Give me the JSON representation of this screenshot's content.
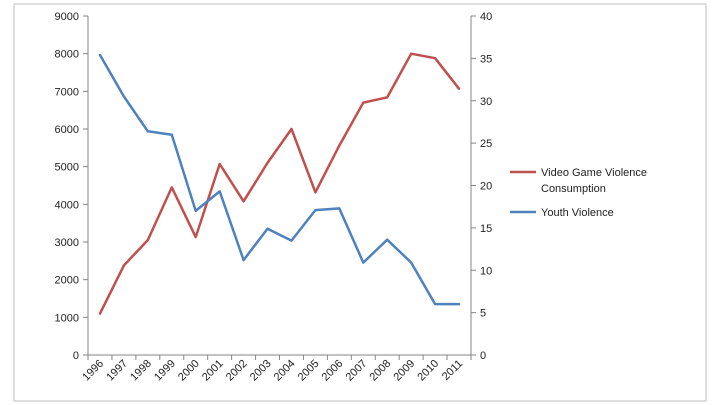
{
  "chart_data": {
    "type": "line",
    "x": [
      "1996",
      "1997",
      "1998",
      "1999",
      "2000",
      "2001",
      "2002",
      "2003",
      "2004",
      "2005",
      "2006",
      "2007",
      "2008",
      "2009",
      "2010",
      "2011"
    ],
    "ylim": [
      0,
      9000
    ],
    "yticks": [
      0,
      1000,
      2000,
      3000,
      4000,
      5000,
      6000,
      7000,
      8000,
      9000
    ],
    "y2lim": [
      0,
      40
    ],
    "y2ticks": [
      0,
      5,
      10,
      15,
      20,
      25,
      30,
      35,
      40
    ],
    "series": [
      {
        "name": "Video Game Violence Consumption",
        "axis": "left",
        "color": "#c0504d",
        "values": [
          1100,
          2380,
          3050,
          4450,
          3130,
          5070,
          4080,
          5100,
          6000,
          4320,
          5560,
          6700,
          6840,
          8000,
          7880,
          7070
        ]
      },
      {
        "name": "Youth Violence",
        "axis": "right",
        "color": "#4f81bd",
        "values": [
          35.4,
          30.5,
          26.4,
          26.0,
          17.0,
          19.3,
          11.2,
          14.9,
          13.5,
          17.1,
          17.3,
          10.9,
          13.6,
          10.9,
          6.0,
          6.0
        ]
      }
    ],
    "grid": false,
    "legend_position": "right"
  }
}
